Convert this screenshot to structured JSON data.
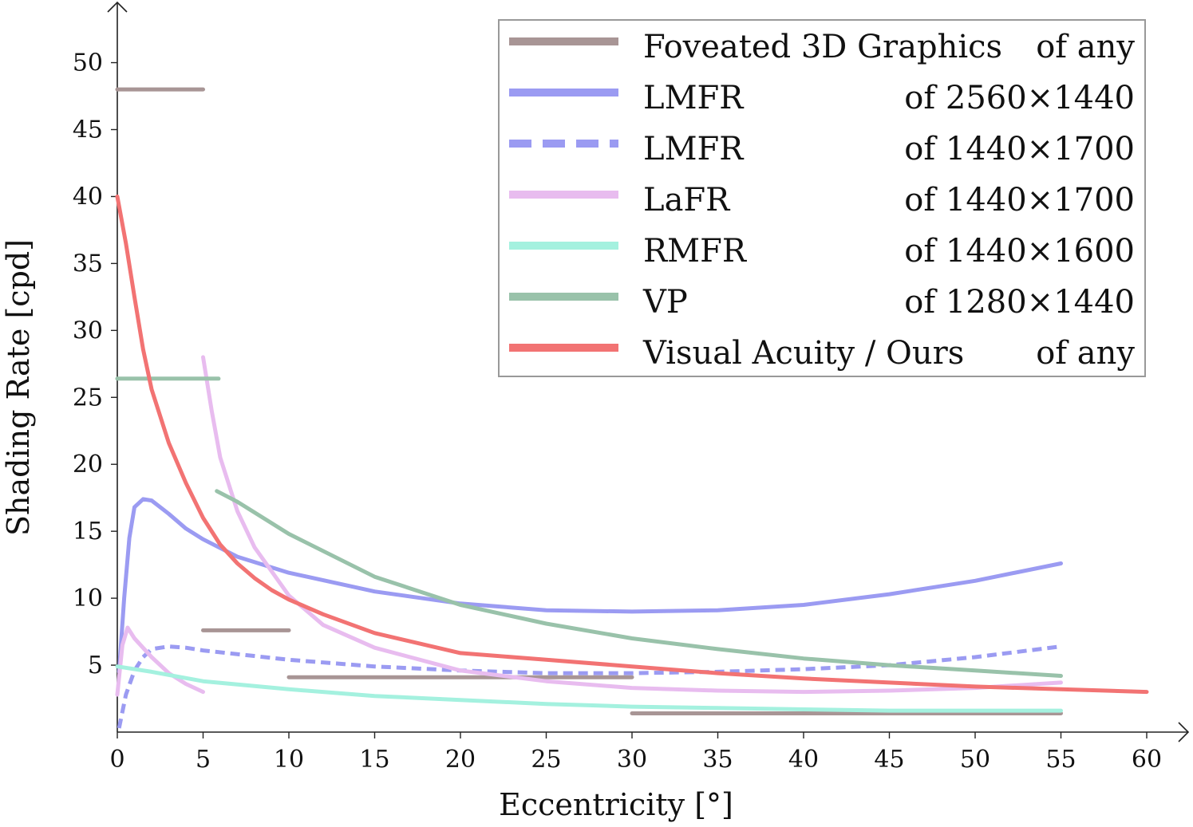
{
  "chart_data": {
    "type": "line",
    "title": "",
    "xlabel": "Eccentricity [°]",
    "ylabel": "Shading Rate [cpd]",
    "xlim": [
      0,
      62
    ],
    "ylim": [
      0,
      54.5
    ],
    "xticks": [
      0,
      5,
      10,
      15,
      20,
      25,
      30,
      35,
      40,
      45,
      50,
      55,
      60
    ],
    "yticks": [
      5,
      10,
      15,
      20,
      25,
      30,
      35,
      40,
      45,
      50
    ],
    "grid": false,
    "legend_position": "top-right",
    "series": [
      {
        "name": "Foveated 3D Graphics",
        "resolution": "of any",
        "color": "#a89595",
        "dash": "solid",
        "segments": [
          [
            [
              0,
              48.0
            ],
            [
              5,
              48.0
            ]
          ],
          [
            [
              5,
              7.6
            ],
            [
              10,
              7.6
            ]
          ],
          [
            [
              10,
              4.1
            ],
            [
              30,
              4.1
            ]
          ],
          [
            [
              30,
              1.4
            ],
            [
              55,
              1.4
            ]
          ]
        ]
      },
      {
        "name": "LMFR",
        "resolution": "of 2560×1440",
        "color": "#9b9bf2",
        "dash": "solid",
        "segments": [
          [
            [
              0.1,
              4.5
            ],
            [
              0.4,
              10.0
            ],
            [
              0.7,
              14.5
            ],
            [
              1.0,
              16.8
            ],
            [
              1.5,
              17.4
            ],
            [
              2.0,
              17.3
            ],
            [
              3.0,
              16.3
            ],
            [
              4.0,
              15.2
            ],
            [
              5.0,
              14.4
            ],
            [
              7.0,
              13.1
            ],
            [
              10.0,
              11.9
            ],
            [
              15.0,
              10.5
            ],
            [
              20.0,
              9.6
            ],
            [
              25.0,
              9.1
            ],
            [
              30.0,
              9.0
            ],
            [
              35.0,
              9.1
            ],
            [
              40.0,
              9.5
            ],
            [
              45.0,
              10.3
            ],
            [
              50.0,
              11.3
            ],
            [
              55.0,
              12.6
            ]
          ]
        ]
      },
      {
        "name": "LMFR",
        "resolution": "of 1440×1700",
        "color": "#9b9bf2",
        "dash": "dashed",
        "segments": [
          [
            [
              0.1,
              0.3
            ],
            [
              0.5,
              2.8
            ],
            [
              1.0,
              4.6
            ],
            [
              1.5,
              5.6
            ],
            [
              2.0,
              6.2
            ],
            [
              3.0,
              6.4
            ],
            [
              4.0,
              6.3
            ],
            [
              5.0,
              6.1
            ],
            [
              10.0,
              5.4
            ],
            [
              15.0,
              4.9
            ],
            [
              20.0,
              4.6
            ],
            [
              25.0,
              4.4
            ],
            [
              30.0,
              4.4
            ],
            [
              35.0,
              4.5
            ],
            [
              40.0,
              4.7
            ],
            [
              45.0,
              5.0
            ],
            [
              50.0,
              5.6
            ],
            [
              55.0,
              6.4
            ]
          ]
        ]
      },
      {
        "name": "LaFR",
        "resolution": "of 1440×1700",
        "color": "#e8bcef",
        "dash": "solid",
        "segments": [
          [
            [
              0.0,
              2.8
            ],
            [
              0.3,
              6.5
            ],
            [
              0.6,
              7.8
            ],
            [
              1.0,
              7.0
            ],
            [
              2.0,
              5.6
            ],
            [
              3.0,
              4.4
            ],
            [
              4.0,
              3.6
            ],
            [
              5.0,
              3.0
            ]
          ],
          [
            [
              5.0,
              28.0
            ],
            [
              5.5,
              24.0
            ],
            [
              6.0,
              20.5
            ],
            [
              7.0,
              16.5
            ],
            [
              8.0,
              13.8
            ],
            [
              10.0,
              10.2
            ],
            [
              12.0,
              8.0
            ],
            [
              15.0,
              6.3
            ],
            [
              20.0,
              4.6
            ],
            [
              25.0,
              3.8
            ],
            [
              30.0,
              3.3
            ],
            [
              35.0,
              3.1
            ],
            [
              40.0,
              3.0
            ],
            [
              45.0,
              3.1
            ],
            [
              50.0,
              3.3
            ],
            [
              55.0,
              3.7
            ]
          ]
        ]
      },
      {
        "name": "RMFR",
        "resolution": "of 1440×1600",
        "color": "#a4f1df",
        "dash": "solid",
        "segments": [
          [
            [
              0.0,
              4.9
            ],
            [
              2.0,
              4.5
            ],
            [
              5.0,
              3.8
            ],
            [
              10.0,
              3.2
            ],
            [
              15.0,
              2.7
            ],
            [
              20.0,
              2.4
            ],
            [
              25.0,
              2.1
            ],
            [
              30.0,
              1.9
            ],
            [
              35.0,
              1.8
            ],
            [
              40.0,
              1.7
            ],
            [
              45.0,
              1.6
            ],
            [
              50.0,
              1.6
            ],
            [
              55.0,
              1.6
            ]
          ]
        ]
      },
      {
        "name": "VP",
        "resolution": "of 1280×1440",
        "color": "#99c2aa",
        "dash": "solid",
        "segments": [
          [
            [
              0,
              26.4
            ],
            [
              5.9,
              26.4
            ]
          ],
          [
            [
              5.8,
              18.0
            ],
            [
              7.0,
              17.2
            ],
            [
              10.0,
              14.8
            ],
            [
              15.0,
              11.6
            ],
            [
              20.0,
              9.5
            ],
            [
              25.0,
              8.1
            ],
            [
              30.0,
              7.0
            ],
            [
              35.0,
              6.2
            ],
            [
              40.0,
              5.5
            ],
            [
              45.0,
              5.0
            ],
            [
              50.0,
              4.6
            ],
            [
              55.0,
              4.2
            ]
          ]
        ]
      },
      {
        "name": "Visual Acuity / Ours",
        "resolution": "of any",
        "color": "#f27373",
        "dash": "solid",
        "segments": [
          [
            [
              0.0,
              40.0
            ],
            [
              0.5,
              36.5
            ],
            [
              1.0,
              32.5
            ],
            [
              1.5,
              28.6
            ],
            [
              2.0,
              25.6
            ],
            [
              3.0,
              21.6
            ],
            [
              4.0,
              18.6
            ],
            [
              5.0,
              16.0
            ],
            [
              6.0,
              14.0
            ],
            [
              7.0,
              12.6
            ],
            [
              8.0,
              11.5
            ],
            [
              9.0,
              10.6
            ],
            [
              10.0,
              9.9
            ],
            [
              12.0,
              8.8
            ],
            [
              15.0,
              7.4
            ],
            [
              20.0,
              5.9
            ],
            [
              25.0,
              5.4
            ],
            [
              30.0,
              4.9
            ],
            [
              35.0,
              4.4
            ],
            [
              40.0,
              4.0
            ],
            [
              45.0,
              3.7
            ],
            [
              50.0,
              3.4
            ],
            [
              55.0,
              3.2
            ],
            [
              60.0,
              3.0
            ]
          ]
        ]
      }
    ]
  }
}
